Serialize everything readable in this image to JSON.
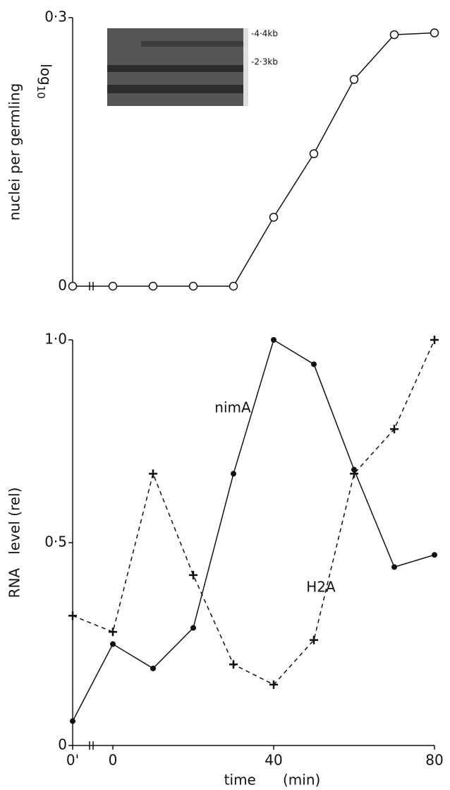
{
  "chart_data": [
    {
      "type": "line",
      "ylabel": "nuclei per germling",
      "ylabel_log": {
        "text": "log",
        "sub": "10"
      },
      "ylim": [
        0,
        0.3
      ],
      "yticks": [
        0,
        {
          "value": 0.3,
          "label": "0·3"
        }
      ],
      "inset_labels": [
        "-4·4kb",
        "-2·3kb"
      ],
      "series": [
        {
          "name": "nuclei",
          "color": "#111",
          "marker": "circle",
          "dash": false,
          "values": [
            0,
            0,
            0,
            0,
            0,
            0.077,
            0.148,
            0.231,
            0.281,
            0.283
          ]
        }
      ]
    },
    {
      "type": "line",
      "ylabel": "RNA   level (rel)",
      "xlabel": "time      (min)",
      "categories": [
        "0'",
        "0",
        null,
        null,
        null,
        "40",
        null,
        null,
        null,
        "80"
      ],
      "ylim": [
        0,
        1
      ],
      "yticks": [
        0,
        {
          "value": 0.5,
          "label": "0·5"
        },
        {
          "value": 1,
          "label": "1·0"
        }
      ],
      "series": [
        {
          "name": "nimA",
          "color": "#111",
          "marker": "dot",
          "dash": false,
          "values": [
            0.06,
            0.25,
            0.19,
            0.29,
            0.67,
            1.0,
            0.94,
            0.68,
            0.44,
            0.47
          ]
        },
        {
          "name": "H2A",
          "color": "#111",
          "marker": "plus",
          "dash": true,
          "values": [
            0.32,
            0.28,
            0.67,
            0.42,
            0.2,
            0.15,
            0.26,
            0.67,
            0.78,
            1.0
          ]
        }
      ]
    }
  ]
}
